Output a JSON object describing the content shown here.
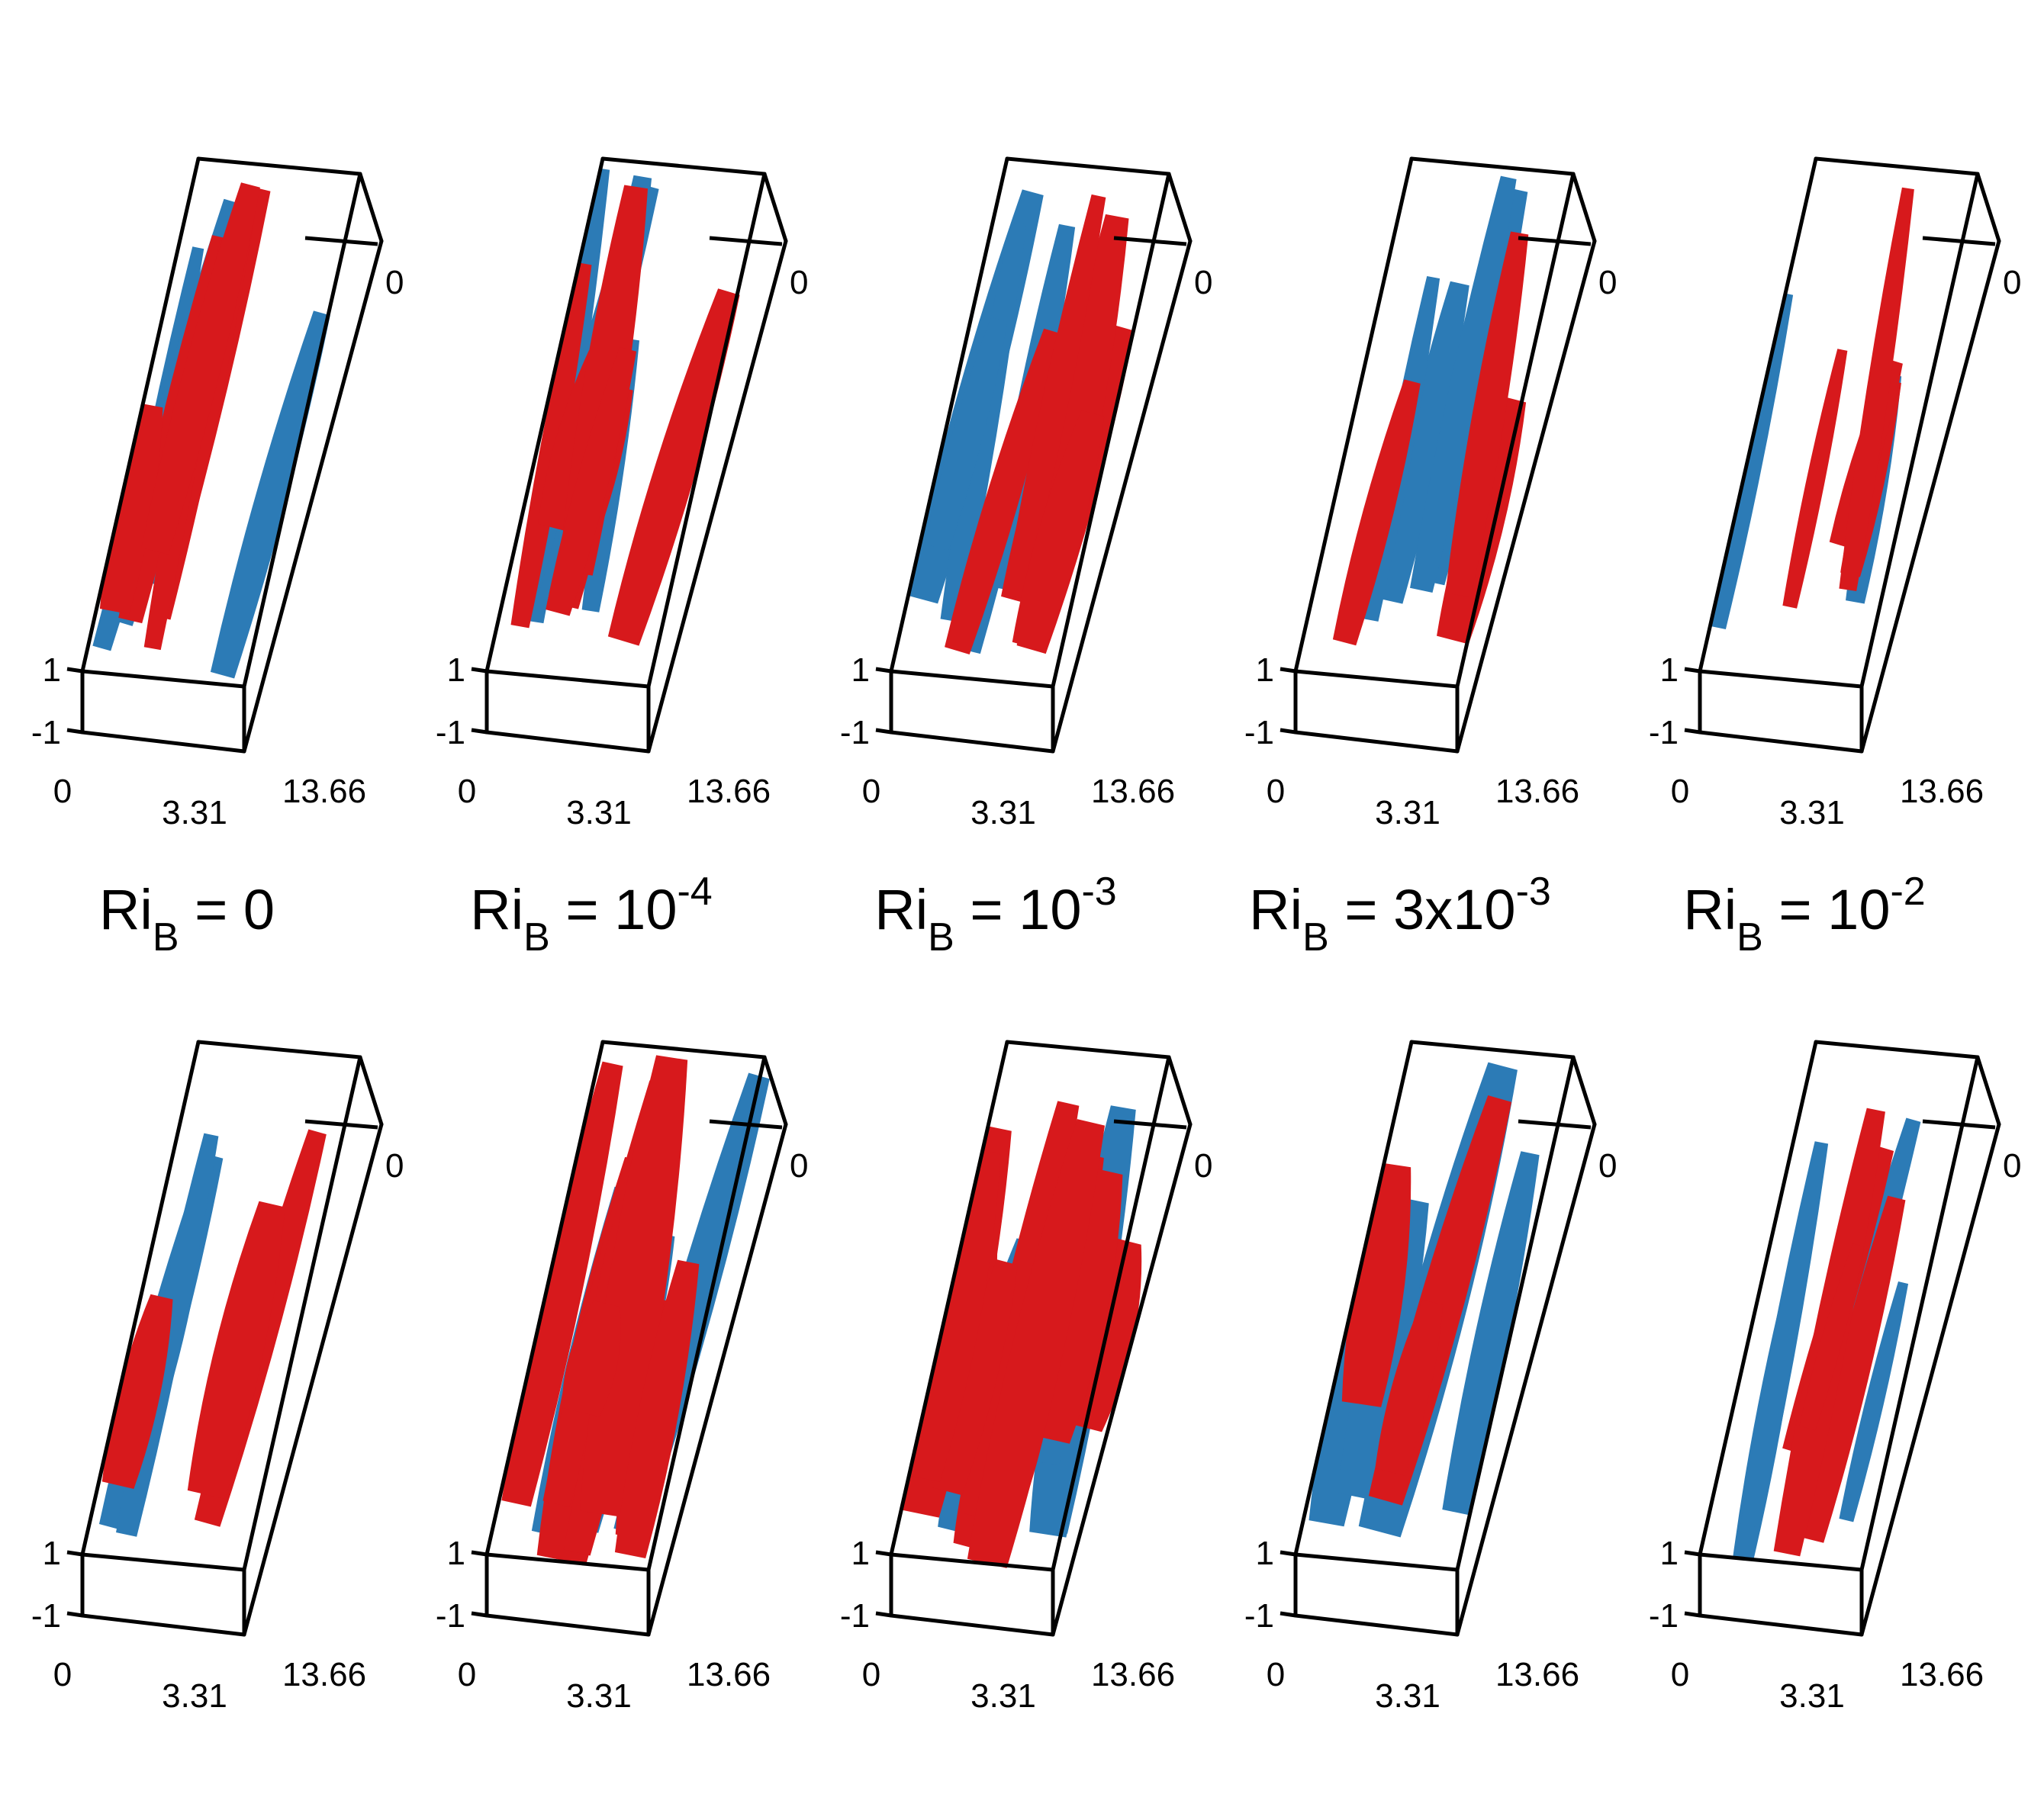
{
  "colors": {
    "positive": "#d7191c",
    "negative": "#2c7bb6",
    "box": "#000000",
    "text": "#000000"
  },
  "axis_ticks": {
    "z_top": "0",
    "y_upper": "1",
    "y_lower": "-1",
    "x_start": "0",
    "x_mid": "3.31",
    "x_end": "13.66"
  },
  "cases": [
    {
      "id": "ri0",
      "label_base": "Ri",
      "label_sub": "B",
      "label_eq": " = 0",
      "label_exp": ""
    },
    {
      "id": "ri1e-4",
      "label_base": "Ri",
      "label_sub": "B",
      "label_eq": " = 10",
      "label_exp": "-4"
    },
    {
      "id": "ri1e-3",
      "label_base": "Ri",
      "label_sub": "B",
      "label_eq": " = 10",
      "label_exp": "-3"
    },
    {
      "id": "ri3e-3",
      "label_base": "Ri",
      "label_sub": "B",
      "label_eq": " = 3x10",
      "label_exp": "-3"
    },
    {
      "id": "ri1e-2",
      "label_base": "Ri",
      "label_sub": "B",
      "label_eq": " = 10",
      "label_exp": "-2"
    }
  ],
  "rows": [
    "top",
    "bottom"
  ]
}
